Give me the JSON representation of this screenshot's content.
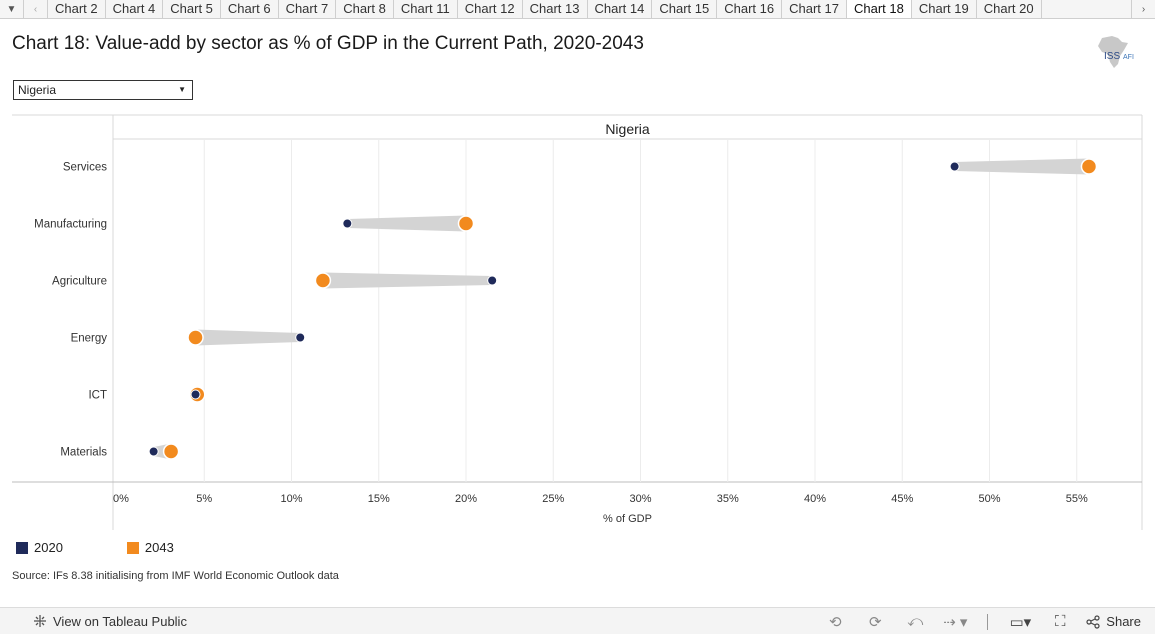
{
  "tabs": {
    "prev_icon": "chevron-left-icon",
    "next_icon": "chevron-right-icon",
    "menu_icon": "caret-down-icon",
    "items": [
      "Chart 2",
      "Chart 4",
      "Chart 5",
      "Chart 6",
      "Chart 7",
      "Chart 8",
      "Chart 11",
      "Chart 12",
      "Chart 13",
      "Chart 14",
      "Chart 15",
      "Chart 16",
      "Chart 17",
      "Chart 18",
      "Chart 19",
      "Chart 20"
    ],
    "active": "Chart 18"
  },
  "title": "Chart 18: Value-add by sector as % of GDP in the Current Path, 2020-2043",
  "logo": {
    "text": "ISS",
    "suffix": "AFI"
  },
  "filter": {
    "selected": "Nigeria"
  },
  "chart_data": {
    "type": "dumbbell",
    "title": "Nigeria",
    "xlabel": "% of GDP",
    "ylabel": "",
    "xlim": [
      0,
      60
    ],
    "xticks": [
      0,
      5,
      10,
      15,
      20,
      25,
      30,
      35,
      40,
      45,
      50,
      55
    ],
    "xtick_labels": [
      "0%",
      "5%",
      "10%",
      "15%",
      "20%",
      "25%",
      "30%",
      "35%",
      "40%",
      "45%",
      "50%",
      "55%"
    ],
    "categories": [
      "Services",
      "Manufacturing",
      "Agriculture",
      "Energy",
      "ICT",
      "Materials"
    ],
    "series": [
      {
        "name": "2020",
        "color": "#1f2a5a",
        "values": [
          48.0,
          13.2,
          21.5,
          10.5,
          4.5,
          2.1
        ]
      },
      {
        "name": "2043",
        "color": "#f28a1e",
        "values": [
          55.7,
          20.0,
          11.8,
          4.5,
          4.6,
          3.1
        ]
      }
    ],
    "connector_color": "#d4d4d4",
    "grid": true
  },
  "legend": [
    {
      "label": "2020",
      "color": "#1f2a5a"
    },
    {
      "label": "2043",
      "color": "#f28a1e"
    }
  ],
  "source": "Source: IFs 8.38 initialising from IMF World Economic Outlook data",
  "footer": {
    "view_label": "View on Tableau Public",
    "share_label": "Share"
  }
}
